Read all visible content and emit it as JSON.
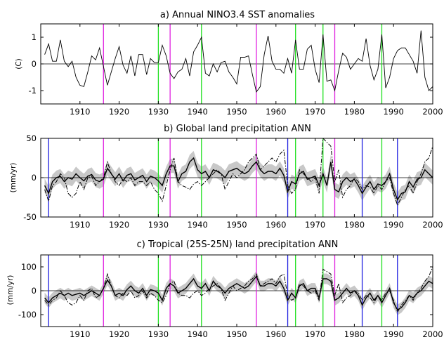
{
  "colors": {
    "magenta": "#e020e0",
    "green": "#20e020",
    "blue": "#2020e0",
    "band": "#c8c8c8",
    "line": "#000000"
  },
  "chart_data": [
    {
      "type": "line",
      "title": "a) Annual NINO3.4 SST anomalies",
      "ylabel": "(C)",
      "xlim": [
        1900,
        2000
      ],
      "ylim": [
        -1.5,
        1.5
      ],
      "xticks": [
        "1910",
        "1920",
        "1930",
        "1940",
        "1950",
        "1960",
        "1970",
        "1980",
        "1990",
        "2000"
      ],
      "yticks": [
        "1",
        "0",
        "-1"
      ],
      "vlines": [
        {
          "x": 1916,
          "color": "magenta"
        },
        {
          "x": 1930,
          "color": "green"
        },
        {
          "x": 1933,
          "color": "magenta"
        },
        {
          "x": 1941,
          "color": "green"
        },
        {
          "x": 1955,
          "color": "magenta"
        },
        {
          "x": 1965,
          "color": "green"
        },
        {
          "x": 1972,
          "color": "green"
        },
        {
          "x": 1975,
          "color": "magenta"
        },
        {
          "x": 1987,
          "color": "green"
        }
      ],
      "x_start": 1901,
      "series": [
        {
          "values": [
            0.35,
            0.75,
            0.1,
            0.1,
            0.9,
            0.1,
            -0.1,
            0.1,
            -0.5,
            -0.8,
            -0.85,
            -0.3,
            0.3,
            0.15,
            0.6,
            -0.1,
            -0.8,
            -0.3,
            0.2,
            0.65,
            -0.05,
            -0.35,
            0.3,
            -0.45,
            0.35,
            0.35,
            -0.4,
            0.2,
            0.05,
            0.05,
            0.7,
            0.3,
            -0.35,
            -0.55,
            -0.3,
            -0.2,
            0.2,
            -0.45,
            0.45,
            0.7,
            1.0,
            -0.35,
            -0.45,
            0.0,
            -0.3,
            0.05,
            0.1,
            -0.3,
            -0.5,
            -0.75,
            0.25,
            0.25,
            0.3,
            -0.4,
            -1.05,
            -0.85,
            0.35,
            1.05,
            0.1,
            -0.2,
            -0.2,
            -0.35,
            0.2,
            -0.35,
            0.9,
            -0.2,
            -0.2,
            0.55,
            0.7,
            -0.2,
            -0.7,
            1.1,
            -0.65,
            -0.6,
            -1.0,
            -0.25,
            0.4,
            0.25,
            -0.2,
            0.0,
            0.2,
            0.1,
            0.95,
            -0.05,
            -0.6,
            -0.2,
            1.1,
            -0.9,
            -0.5,
            0.2,
            0.5,
            0.6,
            0.6,
            0.35,
            0.1,
            -0.35,
            1.25,
            -0.5,
            -1.0,
            -0.85
          ]
        }
      ]
    },
    {
      "type": "line",
      "title": "b) Global land precipitation ANN",
      "ylabel": "(mm/yr)",
      "xlim": [
        1900,
        2000
      ],
      "ylim": [
        -50,
        50
      ],
      "xticks": [
        "1910",
        "1920",
        "1930",
        "1940",
        "1950",
        "1960",
        "1970",
        "1980",
        "1990",
        "2000"
      ],
      "yticks": [
        "50",
        "0",
        "-50"
      ],
      "vlines": [
        {
          "x": 1902,
          "color": "blue"
        },
        {
          "x": 1916,
          "color": "magenta"
        },
        {
          "x": 1930,
          "color": "green"
        },
        {
          "x": 1933,
          "color": "magenta"
        },
        {
          "x": 1941,
          "color": "green"
        },
        {
          "x": 1955,
          "color": "magenta"
        },
        {
          "x": 1963,
          "color": "blue"
        },
        {
          "x": 1965,
          "color": "green"
        },
        {
          "x": 1972,
          "color": "green"
        },
        {
          "x": 1975,
          "color": "magenta"
        },
        {
          "x": 1982,
          "color": "blue"
        },
        {
          "x": 1987,
          "color": "green"
        },
        {
          "x": 1991,
          "color": "blue"
        }
      ],
      "band_halfwidth": 9,
      "x_start": 1901,
      "series": [
        {
          "style": "solid",
          "values": [
            -10,
            -20,
            -5,
            0,
            2,
            -5,
            0,
            -2,
            5,
            0,
            -4,
            2,
            4,
            -3,
            -5,
            -2,
            12,
            5,
            -2,
            5,
            -4,
            3,
            5,
            -3,
            0,
            3,
            -5,
            2,
            0,
            -4,
            -10,
            5,
            15,
            15,
            -5,
            5,
            8,
            20,
            25,
            10,
            5,
            8,
            0,
            10,
            8,
            5,
            0,
            8,
            10,
            12,
            8,
            5,
            8,
            15,
            20,
            10,
            5,
            8,
            8,
            5,
            12,
            3,
            -18,
            -5,
            -8,
            5,
            8,
            -2,
            0,
            2,
            -10,
            5,
            -10,
            20,
            -15,
            -18,
            -5,
            0,
            -5,
            -2,
            -10,
            -20,
            -12,
            -5,
            -15,
            -8,
            -10,
            -5,
            5,
            -15,
            -28,
            -20,
            -18,
            -5,
            -12,
            -2,
            0,
            10,
            5,
            0
          ]
        },
        {
          "style": "dashdot",
          "values": [
            -15,
            -30,
            -10,
            -5,
            5,
            0,
            -20,
            -25,
            -20,
            -5,
            -15,
            0,
            2,
            -10,
            -5,
            0,
            20,
            5,
            -5,
            -10,
            -2,
            -5,
            0,
            -10,
            -5,
            -5,
            -10,
            -5,
            -15,
            -20,
            -30,
            -10,
            10,
            25,
            -5,
            -10,
            -12,
            -15,
            -8,
            -5,
            -10,
            -5,
            0,
            5,
            10,
            5,
            -15,
            -5,
            5,
            0,
            5,
            10,
            20,
            25,
            30,
            10,
            15,
            20,
            25,
            20,
            30,
            35,
            -10,
            -20,
            -15,
            10,
            5,
            0,
            -5,
            0,
            -20,
            50,
            45,
            40,
            -5,
            10,
            -25,
            -15,
            -10,
            0,
            -5,
            -15,
            -10,
            -12,
            -20,
            -10,
            -15,
            -5,
            0,
            -20,
            -35,
            -25,
            -15,
            -10,
            -20,
            -5,
            5,
            20,
            25,
            40
          ]
        }
      ]
    },
    {
      "type": "line",
      "title": "c) Tropical (25S-25N) land precipitation ANN",
      "ylabel": "(mm/yr)",
      "xlim": [
        1900,
        2000
      ],
      "ylim": [
        -150,
        150
      ],
      "xticks": [
        "1910",
        "1920",
        "1930",
        "1940",
        "1950",
        "1960",
        "1970",
        "1980",
        "1990",
        "2000"
      ],
      "yticks": [
        "100",
        "0",
        "-100"
      ],
      "vlines": [
        {
          "x": 1902,
          "color": "blue"
        },
        {
          "x": 1916,
          "color": "magenta"
        },
        {
          "x": 1930,
          "color": "green"
        },
        {
          "x": 1933,
          "color": "magenta"
        },
        {
          "x": 1941,
          "color": "green"
        },
        {
          "x": 1955,
          "color": "magenta"
        },
        {
          "x": 1963,
          "color": "blue"
        },
        {
          "x": 1965,
          "color": "green"
        },
        {
          "x": 1972,
          "color": "green"
        },
        {
          "x": 1975,
          "color": "magenta"
        },
        {
          "x": 1982,
          "color": "blue"
        },
        {
          "x": 1987,
          "color": "green"
        },
        {
          "x": 1991,
          "color": "blue"
        }
      ],
      "band_halfwidth": 22,
      "x_start": 1901,
      "series": [
        {
          "style": "solid",
          "values": [
            -30,
            -50,
            -30,
            -20,
            -10,
            -20,
            -10,
            -20,
            -15,
            -10,
            -20,
            -10,
            0,
            -10,
            -20,
            10,
            45,
            20,
            -20,
            -10,
            -20,
            5,
            20,
            0,
            -10,
            10,
            -20,
            5,
            0,
            -10,
            -40,
            10,
            30,
            20,
            -10,
            0,
            10,
            30,
            50,
            20,
            10,
            30,
            0,
            40,
            20,
            10,
            -10,
            10,
            20,
            30,
            20,
            10,
            20,
            40,
            60,
            20,
            20,
            30,
            30,
            20,
            40,
            10,
            -40,
            -10,
            -30,
            20,
            30,
            0,
            10,
            10,
            -30,
            50,
            50,
            40,
            -40,
            -30,
            -10,
            10,
            -10,
            0,
            -20,
            -60,
            -30,
            -10,
            -40,
            -20,
            -50,
            -20,
            10,
            -50,
            -80,
            -70,
            -50,
            -20,
            -30,
            -10,
            0,
            20,
            40,
            30
          ]
        },
        {
          "style": "dashdot",
          "values": [
            -40,
            -60,
            -40,
            -30,
            0,
            -20,
            -50,
            -60,
            -50,
            -20,
            -40,
            0,
            10,
            -30,
            -20,
            10,
            70,
            20,
            -20,
            -30,
            -10,
            -20,
            0,
            -30,
            -20,
            0,
            -30,
            -10,
            -20,
            -40,
            -50,
            -20,
            30,
            40,
            -10,
            -20,
            -20,
            -30,
            -10,
            0,
            -20,
            -10,
            10,
            20,
            30,
            10,
            -40,
            -10,
            20,
            0,
            10,
            20,
            40,
            50,
            70,
            20,
            30,
            40,
            50,
            30,
            60,
            70,
            -20,
            -40,
            -30,
            30,
            20,
            0,
            -10,
            0,
            -40,
            90,
            80,
            70,
            -20,
            30,
            -50,
            -30,
            -20,
            0,
            -10,
            -40,
            -20,
            -30,
            -50,
            -20,
            -40,
            -10,
            0,
            -40,
            -90,
            -60,
            -40,
            -20,
            -40,
            -10,
            10,
            40,
            60,
            100
          ]
        }
      ]
    }
  ]
}
